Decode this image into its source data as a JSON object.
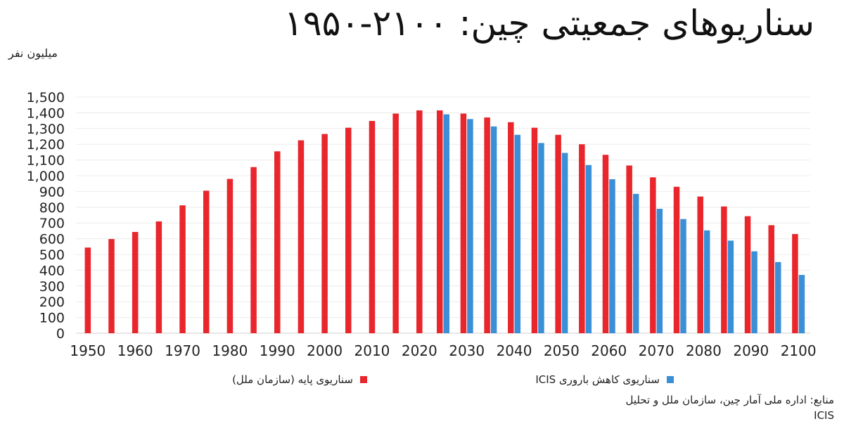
{
  "header": {
    "title": "سناریوهای جمعیتی چین: ۲۱۰۰-۱۹۵۰",
    "unit": "میلیون نفر"
  },
  "legend": [
    {
      "label": "سناریوی پایه (سازمان ملل)",
      "color": "#e8262c"
    },
    {
      "label": "سناریوی کاهش باروری ICIS",
      "color": "#3a8fd6"
    }
  ],
  "source": {
    "line1": "منابع: اداره ملی آمار چین، سازمان ملل و تحلیل",
    "line2": "ICIS"
  },
  "chart_data": {
    "type": "bar",
    "title": "سناریوهای جمعیتی چین: ۲۱۰۰-۱۹۵۰",
    "ylabel": "میلیون نفر",
    "xlabel": "",
    "ylim": [
      0,
      1500
    ],
    "yticks": [
      0,
      100,
      200,
      300,
      400,
      500,
      600,
      700,
      800,
      900,
      1000,
      1100,
      1200,
      1300,
      1400,
      1500
    ],
    "ytick_labels": [
      "0",
      "100",
      "200",
      "300",
      "400",
      "500",
      "600",
      "700",
      "800",
      "900",
      "1,000",
      "1,100",
      "1,200",
      "1,300",
      "1,400",
      "1,500"
    ],
    "xtick_labels": [
      "1950",
      "1960",
      "1970",
      "1980",
      "1990",
      "2000",
      "2010",
      "2020",
      "2030",
      "2040",
      "2050",
      "2060",
      "2070",
      "2080",
      "2090",
      "2100"
    ],
    "grid": true,
    "legend_position": "bottom",
    "categories": [
      1950,
      1955,
      1960,
      1965,
      1970,
      1975,
      1980,
      1985,
      1990,
      1995,
      2000,
      2005,
      2010,
      2015,
      2020,
      2025,
      2030,
      2035,
      2040,
      2045,
      2050,
      2055,
      2060,
      2065,
      2070,
      2075,
      2080,
      2085,
      2090,
      2095,
      2100
    ],
    "series": [
      {
        "name": "سناریوی پایه (سازمان ملل)",
        "color": "#e8262c",
        "values": [
          544,
          598,
          643,
          710,
          812,
          905,
          980,
          1055,
          1155,
          1225,
          1265,
          1305,
          1348,
          1395,
          1415,
          1415,
          1395,
          1370,
          1340,
          1305,
          1260,
          1200,
          1133,
          1065,
          990,
          930,
          868,
          805,
          743,
          686,
          630
        ]
      },
      {
        "name": "سناریوی کاهش باروری ICIS",
        "color": "#3a8fd6",
        "values": [
          null,
          null,
          null,
          null,
          null,
          null,
          null,
          null,
          null,
          null,
          null,
          null,
          null,
          null,
          null,
          1390,
          1360,
          1313,
          1260,
          1208,
          1145,
          1068,
          978,
          885,
          790,
          725,
          653,
          588,
          520,
          452,
          370
        ]
      }
    ]
  }
}
